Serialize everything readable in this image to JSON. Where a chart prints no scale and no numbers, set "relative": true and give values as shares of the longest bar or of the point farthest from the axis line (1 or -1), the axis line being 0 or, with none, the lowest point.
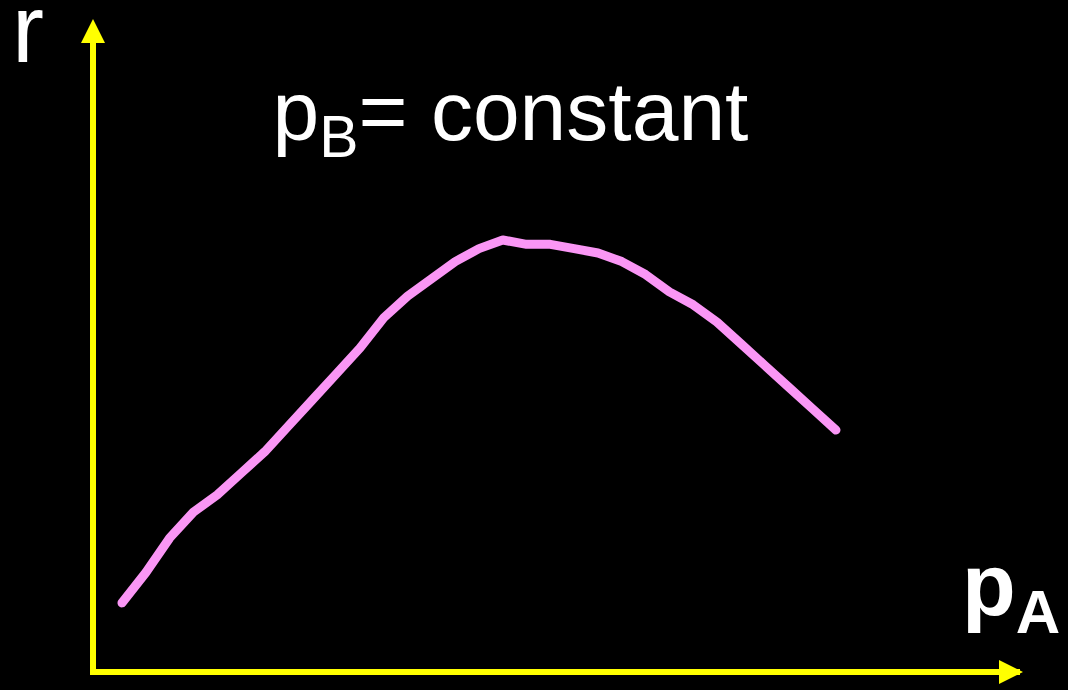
{
  "chart_data": {
    "type": "line",
    "title": "p$_{B}$= constant",
    "xlabel": "p$_{A}$",
    "ylabel": "r",
    "relative": true,
    "categories": [
      null,
      null,
      null,
      null,
      null,
      null,
      null,
      null,
      null,
      null,
      null,
      null,
      null,
      null,
      null,
      null,
      null,
      null,
      null,
      null,
      null,
      null,
      null,
      null,
      null,
      null,
      null,
      null,
      null,
      null,
      null
    ],
    "series": [
      {
        "color": "#fa96f5",
        "values": [
          0.16,
          0.23,
          0.31,
          0.37,
          0.41,
          0.46,
          0.51,
          0.57,
          0.63,
          0.69,
          0.75,
          0.82,
          0.87,
          0.91,
          0.95,
          0.98,
          1,
          0.99,
          0.99,
          0.98,
          0.97,
          0.95,
          0.92,
          0.88,
          0.85,
          0.81,
          0.76,
          0.71,
          0.66,
          0.61,
          0.56
        ]
      }
    ]
  }
}
